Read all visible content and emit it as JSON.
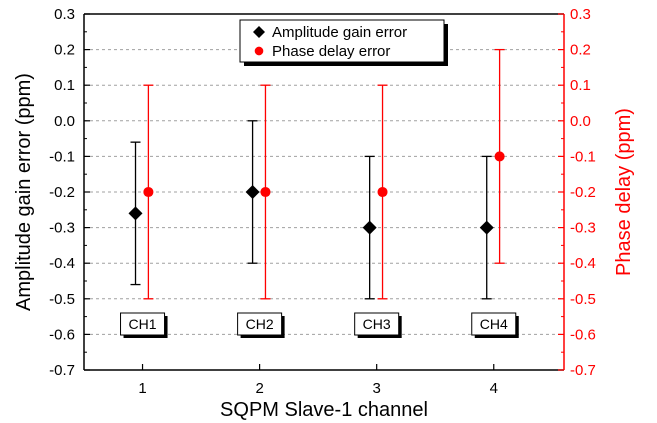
{
  "chart_data": {
    "type": "scatter",
    "categories": [
      "1",
      "2",
      "3",
      "4"
    ],
    "x": [
      1,
      2,
      3,
      4
    ],
    "xlabel": "SQPM Slave-1 channel",
    "ylabel": "Amplitude gain error (ppm)",
    "y2label": "Phase delay (ppm)",
    "xlim": [
      0.5,
      4.6
    ],
    "ylim": [
      -0.7,
      0.3
    ],
    "y2lim": [
      -0.7,
      0.3
    ],
    "yticks": [
      "0.3",
      "0.2",
      "0.1",
      "0.0",
      "-0.1",
      "-0.2",
      "-0.3",
      "-0.4",
      "-0.5",
      "-0.6",
      "-0.7"
    ],
    "y2ticks": [
      "0.3",
      "0.2",
      "0.1",
      "0.0",
      "-0.1",
      "-0.2",
      "-0.3",
      "-0.4",
      "-0.5",
      "-0.6",
      "-0.7"
    ],
    "grid": true,
    "legend": "top-center",
    "series": [
      {
        "name": "Amplitude gain error",
        "axis": "left",
        "color": "#000000",
        "marker": "diamond",
        "values": [
          -0.26,
          -0.2,
          -0.3,
          -0.3
        ],
        "error": [
          0.2,
          0.2,
          0.2,
          0.2
        ]
      },
      {
        "name": "Phase delay error",
        "axis": "right",
        "color": "#ff0000",
        "marker": "circle",
        "values": [
          -0.2,
          -0.2,
          -0.2,
          -0.1
        ],
        "error": [
          0.3,
          0.3,
          0.3,
          0.3
        ]
      }
    ],
    "annotations": [
      "CH1",
      "CH2",
      "CH3",
      "CH4"
    ]
  }
}
